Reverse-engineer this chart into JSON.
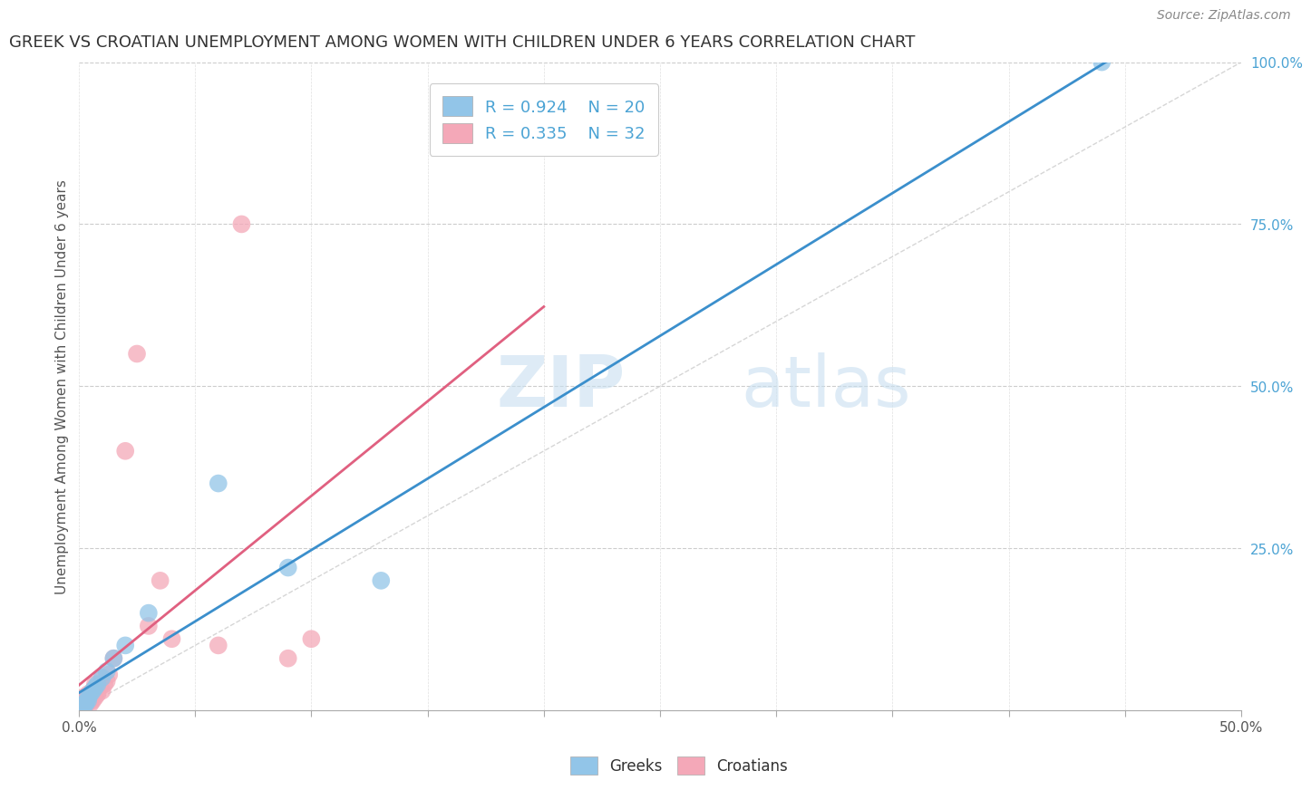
{
  "title": "GREEK VS CROATIAN UNEMPLOYMENT AMONG WOMEN WITH CHILDREN UNDER 6 YEARS CORRELATION CHART",
  "source": "Source: ZipAtlas.com",
  "ylabel": "Unemployment Among Women with Children Under 6 years",
  "xlim": [
    0.0,
    0.5
  ],
  "ylim": [
    0.0,
    1.0
  ],
  "greek_color": "#92C5E8",
  "croatian_color": "#F4A8B8",
  "greek_line_color": "#3B8FCC",
  "croatian_line_color": "#E06080",
  "greek_R": 0.924,
  "greek_N": 20,
  "croatian_R": 0.335,
  "croatian_N": 32,
  "watermark_zip": "ZIP",
  "watermark_atlas": "atlas",
  "background_color": "#ffffff",
  "greeks_x": [
    0.001,
    0.002,
    0.002,
    0.003,
    0.003,
    0.004,
    0.004,
    0.005,
    0.006,
    0.007,
    0.008,
    0.01,
    0.012,
    0.015,
    0.02,
    0.03,
    0.06,
    0.09,
    0.13,
    0.44
  ],
  "greeks_y": [
    0.003,
    0.005,
    0.008,
    0.01,
    0.012,
    0.015,
    0.02,
    0.025,
    0.03,
    0.035,
    0.04,
    0.05,
    0.06,
    0.08,
    0.1,
    0.15,
    0.35,
    0.22,
    0.2,
    1.0
  ],
  "croatians_x": [
    0.001,
    0.001,
    0.002,
    0.002,
    0.002,
    0.003,
    0.003,
    0.004,
    0.004,
    0.005,
    0.005,
    0.006,
    0.006,
    0.007,
    0.007,
    0.008,
    0.009,
    0.01,
    0.01,
    0.011,
    0.012,
    0.013,
    0.015,
    0.02,
    0.025,
    0.03,
    0.035,
    0.04,
    0.06,
    0.07,
    0.09,
    0.1
  ],
  "croatians_y": [
    0.003,
    0.01,
    0.005,
    0.012,
    0.02,
    0.008,
    0.015,
    0.012,
    0.025,
    0.01,
    0.02,
    0.015,
    0.03,
    0.02,
    0.04,
    0.025,
    0.035,
    0.03,
    0.05,
    0.04,
    0.045,
    0.055,
    0.08,
    0.4,
    0.55,
    0.13,
    0.2,
    0.11,
    0.1,
    0.75,
    0.08,
    0.11
  ]
}
